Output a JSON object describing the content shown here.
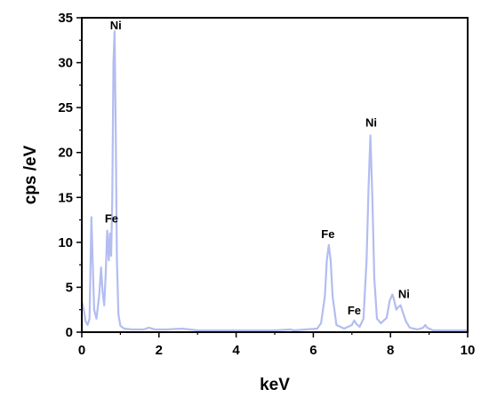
{
  "chart_data": {
    "type": "line",
    "title": "",
    "xlabel": "keV",
    "ylabel": "cps /eV",
    "xlim": [
      0,
      10
    ],
    "ylim": [
      0,
      35
    ],
    "xticks": [
      0,
      2,
      4,
      6,
      8,
      10
    ],
    "yticks": [
      0,
      5,
      10,
      15,
      20,
      25,
      30,
      35
    ],
    "grid": false,
    "line_color": "#b3bdf0",
    "series": [
      {
        "name": "",
        "x": [
          0.0,
          0.05,
          0.1,
          0.15,
          0.2,
          0.25,
          0.28,
          0.32,
          0.38,
          0.45,
          0.5,
          0.54,
          0.58,
          0.62,
          0.66,
          0.7,
          0.73,
          0.76,
          0.79,
          0.82,
          0.85,
          0.88,
          0.91,
          0.95,
          1.0,
          1.1,
          1.3,
          1.6,
          1.74,
          1.9,
          2.2,
          2.6,
          3.0,
          4.0,
          5.0,
          5.4,
          5.5,
          5.8,
          6.1,
          6.2,
          6.3,
          6.35,
          6.4,
          6.45,
          6.5,
          6.6,
          6.8,
          7.0,
          7.06,
          7.12,
          7.2,
          7.3,
          7.38,
          7.43,
          7.48,
          7.53,
          7.58,
          7.65,
          7.75,
          7.9,
          7.98,
          8.05,
          8.1,
          8.15,
          8.2,
          8.26,
          8.32,
          8.4,
          8.5,
          8.7,
          8.85,
          8.9,
          8.95,
          9.1,
          9.5,
          10.0
        ],
        "y": [
          3.5,
          2.5,
          1.2,
          0.8,
          1.5,
          12.8,
          8.0,
          2.5,
          1.5,
          4.0,
          7.2,
          4.5,
          3.0,
          6.5,
          11.3,
          8.0,
          11.0,
          8.5,
          15.0,
          30.0,
          33.5,
          22.0,
          8.0,
          2.0,
          0.7,
          0.4,
          0.3,
          0.3,
          0.5,
          0.3,
          0.3,
          0.4,
          0.2,
          0.2,
          0.2,
          0.3,
          0.2,
          0.3,
          0.4,
          1.0,
          4.0,
          8.0,
          9.7,
          8.0,
          4.0,
          0.8,
          0.4,
          0.8,
          1.3,
          0.9,
          0.6,
          1.5,
          8.0,
          16.0,
          21.9,
          15.0,
          6.0,
          1.5,
          1.0,
          1.6,
          3.5,
          4.2,
          3.5,
          2.5,
          2.8,
          3.0,
          2.2,
          1.2,
          0.5,
          0.3,
          0.5,
          0.8,
          0.5,
          0.2,
          0.2,
          0.2
        ]
      }
    ],
    "annotations": [
      {
        "text": "Ni",
        "x": 0.88,
        "y": 33.7
      },
      {
        "text": "Fe",
        "x": 0.77,
        "y": 12.2
      },
      {
        "text": "Fe",
        "x": 6.38,
        "y": 10.5
      },
      {
        "text": "Fe",
        "x": 7.06,
        "y": 2.0
      },
      {
        "text": "Ni",
        "x": 7.5,
        "y": 22.9
      },
      {
        "text": "Ni",
        "x": 8.35,
        "y": 3.8
      }
    ]
  }
}
